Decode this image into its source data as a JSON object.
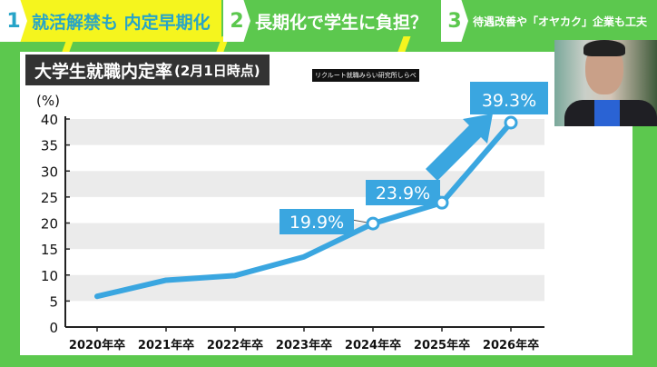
{
  "topics": [
    {
      "number": "1",
      "label": "就活解禁も 内定早期化"
    },
    {
      "number": "2",
      "label": "長期化で学生に負担？"
    },
    {
      "number": "3",
      "label": "待遇改善や「オヤカク」企業も工夫"
    }
  ],
  "source": "リクルート就職みらい研究所しらべ",
  "chart_data": {
    "type": "line",
    "title": "大学生就職内定率",
    "subtitle": "(2月1日時点)",
    "ylabel": "(%)",
    "ylim": [
      0,
      40
    ],
    "yticks": [
      "0",
      "5",
      "10",
      "15",
      "20",
      "25",
      "30",
      "35",
      "40"
    ],
    "categories": [
      "2020年卒",
      "2021年卒",
      "2022年卒",
      "2023年卒",
      "2024年卒",
      "2025年卒",
      "2026年卒"
    ],
    "values": [
      5.9,
      9.0,
      9.9,
      13.5,
      19.9,
      23.9,
      39.3
    ],
    "data_labels": [
      null,
      null,
      null,
      null,
      "19.9%",
      "23.9%",
      "39.3%"
    ],
    "color": "#3aa6e0",
    "grid": "alternating bands"
  }
}
